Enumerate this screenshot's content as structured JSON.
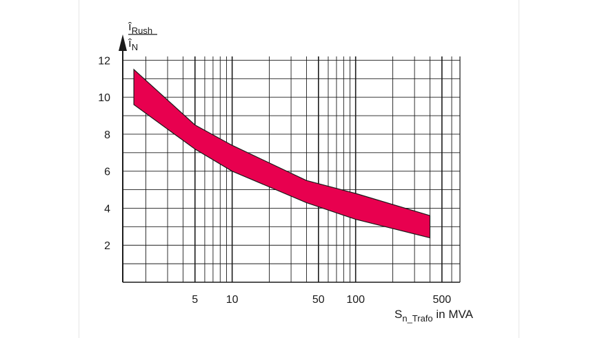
{
  "chart_data": {
    "type": "area",
    "x_scale": "log",
    "xlim": [
      1.3,
      700
    ],
    "ylim": [
      0,
      12.5
    ],
    "grid": true,
    "x_ticks": [
      5,
      10,
      50,
      100,
      500
    ],
    "y_ticks": [
      2,
      4,
      6,
      8,
      10,
      12
    ],
    "ylabel": {
      "numerator": "î",
      "numerator_sub": "Rush",
      "denominator": "î",
      "denominator_sub": "N"
    },
    "xlabel": {
      "base": "S",
      "sub": "n_Trafo",
      "suffix": " in MVA"
    },
    "band_color": "#e8004f",
    "series": [
      {
        "x": [
          1.6,
          5,
          10,
          40,
          100,
          400
        ],
        "values": [
          11.5,
          8.5,
          7.4,
          5.5,
          4.8,
          3.6
        ]
      },
      {
        "x": [
          1.6,
          5,
          10,
          40,
          100,
          400
        ],
        "values": [
          9.6,
          7.2,
          6.0,
          4.3,
          3.4,
          2.4
        ]
      }
    ]
  }
}
